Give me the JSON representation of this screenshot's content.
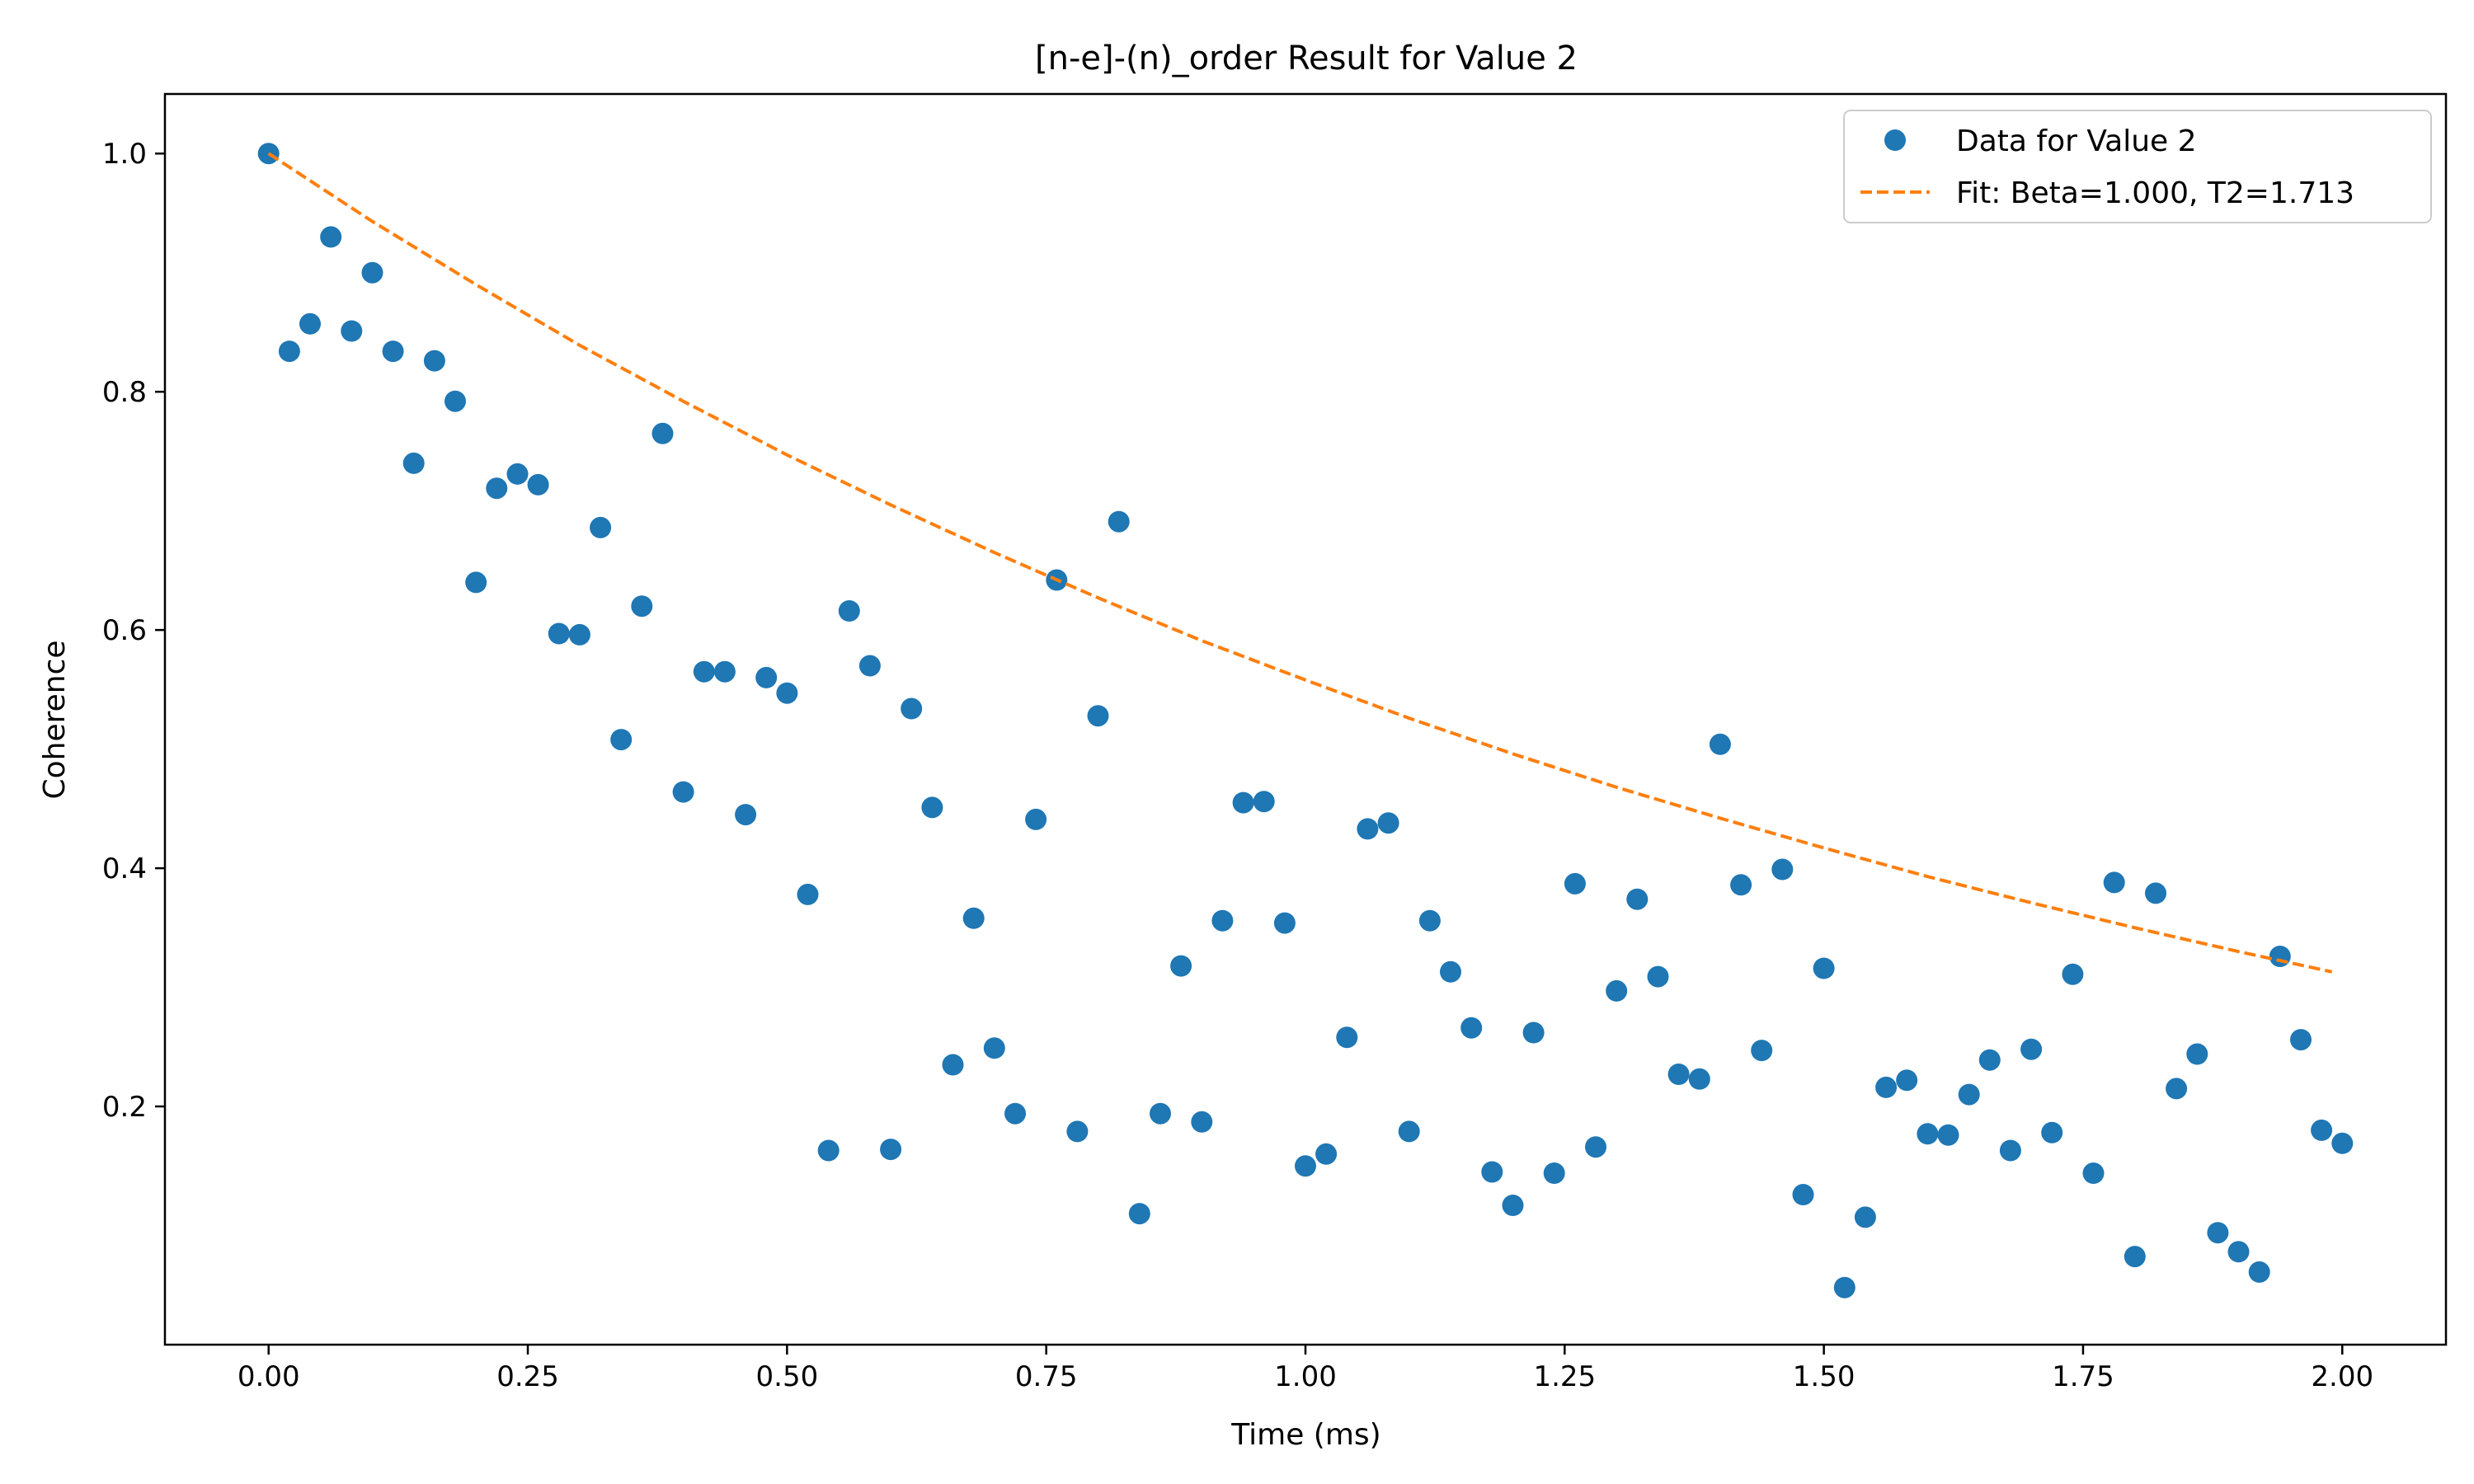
{
  "chart_data": {
    "type": "scatter",
    "title": "[n-e]-(n)_order Result for Value 2",
    "xlabel": "Time (ms)",
    "ylabel": "Coherence",
    "xlim": [
      -0.1,
      2.1
    ],
    "ylim": [
      0.0,
      1.05
    ],
    "x_ticks": [
      {
        "value": 0.0,
        "label": "0.00"
      },
      {
        "value": 0.25,
        "label": "0.25"
      },
      {
        "value": 0.5,
        "label": "0.50"
      },
      {
        "value": 0.75,
        "label": "0.75"
      },
      {
        "value": 1.0,
        "label": "1.00"
      },
      {
        "value": 1.25,
        "label": "1.25"
      },
      {
        "value": 1.5,
        "label": "1.50"
      },
      {
        "value": 1.75,
        "label": "1.75"
      },
      {
        "value": 2.0,
        "label": "2.00"
      }
    ],
    "y_ticks": [
      {
        "value": 0.2,
        "label": "0.2"
      },
      {
        "value": 0.4,
        "label": "0.4"
      },
      {
        "value": 0.6,
        "label": "0.6"
      },
      {
        "value": 0.8,
        "label": "0.8"
      },
      {
        "value": 1.0,
        "label": "1.0"
      }
    ],
    "grid": false,
    "legend_position": "top-right",
    "series": [
      {
        "name": "Data for Value 2",
        "kind": "scatter",
        "color": "#1f77b4",
        "x": [
          0.0,
          0.02,
          0.04,
          0.06,
          0.08,
          0.1,
          0.12,
          0.14,
          0.16,
          0.18,
          0.2,
          0.22,
          0.24,
          0.26,
          0.28,
          0.3,
          0.32,
          0.34,
          0.36,
          0.38,
          0.4,
          0.42,
          0.44,
          0.46,
          0.48,
          0.5,
          0.52,
          0.54,
          0.56,
          0.58,
          0.6,
          0.62,
          0.64,
          0.66,
          0.68,
          0.7,
          0.72,
          0.74,
          0.76,
          0.78,
          0.8,
          0.82,
          0.84,
          0.86,
          0.88,
          0.9,
          0.92,
          0.94,
          0.96,
          0.98,
          1.0,
          1.02,
          1.04,
          1.06,
          1.08,
          1.1,
          1.12,
          1.14,
          1.16,
          1.18,
          1.2,
          1.22,
          1.24,
          1.26,
          1.28,
          1.3,
          1.32,
          1.34,
          1.36,
          1.38,
          1.4,
          1.42,
          1.44,
          1.46,
          1.48,
          1.5,
          1.52,
          1.54,
          1.56,
          1.58,
          1.6,
          1.62,
          1.64,
          1.66,
          1.68,
          1.7,
          1.72,
          1.74,
          1.76,
          1.78,
          1.8,
          1.82,
          1.84,
          1.86,
          1.88,
          1.9,
          1.92,
          1.94,
          1.96,
          1.98,
          2.0
        ],
        "y": [
          1.0,
          0.834,
          0.857,
          0.93,
          0.851,
          0.9,
          0.834,
          0.74,
          0.826,
          0.792,
          0.64,
          0.719,
          0.731,
          0.722,
          0.597,
          0.596,
          0.686,
          0.508,
          0.62,
          0.765,
          0.464,
          0.565,
          0.565,
          0.445,
          0.56,
          0.547,
          0.378,
          0.163,
          0.616,
          0.57,
          0.164,
          0.534,
          0.451,
          0.235,
          0.358,
          0.249,
          0.194,
          0.441,
          0.642,
          0.179,
          0.528,
          0.691,
          0.11,
          0.194,
          0.318,
          0.187,
          0.356,
          0.455,
          0.456,
          0.354,
          0.15,
          0.16,
          0.258,
          0.433,
          0.438,
          0.179,
          0.356,
          0.313,
          0.266,
          0.145,
          0.117,
          0.262,
          0.144,
          0.387,
          0.166,
          0.297,
          0.374,
          0.309,
          0.227,
          0.223,
          0.504,
          0.386,
          0.247,
          0.399,
          0.126,
          0.316,
          0.048,
          0.107,
          0.216,
          0.222,
          0.177,
          0.176,
          0.21,
          0.239,
          0.163,
          0.248,
          0.178,
          0.311,
          0.144,
          0.388,
          0.074,
          0.379,
          0.215,
          0.244,
          0.094,
          0.078,
          0.061,
          0.326,
          0.256,
          0.18,
          0.169
        ]
      },
      {
        "name": "Fit: Beta=1.000, T2=1.713",
        "kind": "line",
        "style": "dashed",
        "color": "#ff7f0e",
        "x": [
          0.0,
          0.1,
          0.2,
          0.3,
          0.4,
          0.5,
          0.6,
          0.7,
          0.8,
          0.9,
          1.0,
          1.1,
          1.2,
          1.3,
          1.4,
          1.5,
          1.6,
          1.7,
          1.8,
          1.9,
          1.99
        ],
        "y": [
          1.0,
          0.943,
          0.89,
          0.839,
          0.792,
          0.747,
          0.705,
          0.665,
          0.627,
          0.591,
          0.558,
          0.526,
          0.496,
          0.468,
          0.442,
          0.417,
          0.393,
          0.371,
          0.35,
          0.33,
          0.313
        ]
      }
    ]
  }
}
